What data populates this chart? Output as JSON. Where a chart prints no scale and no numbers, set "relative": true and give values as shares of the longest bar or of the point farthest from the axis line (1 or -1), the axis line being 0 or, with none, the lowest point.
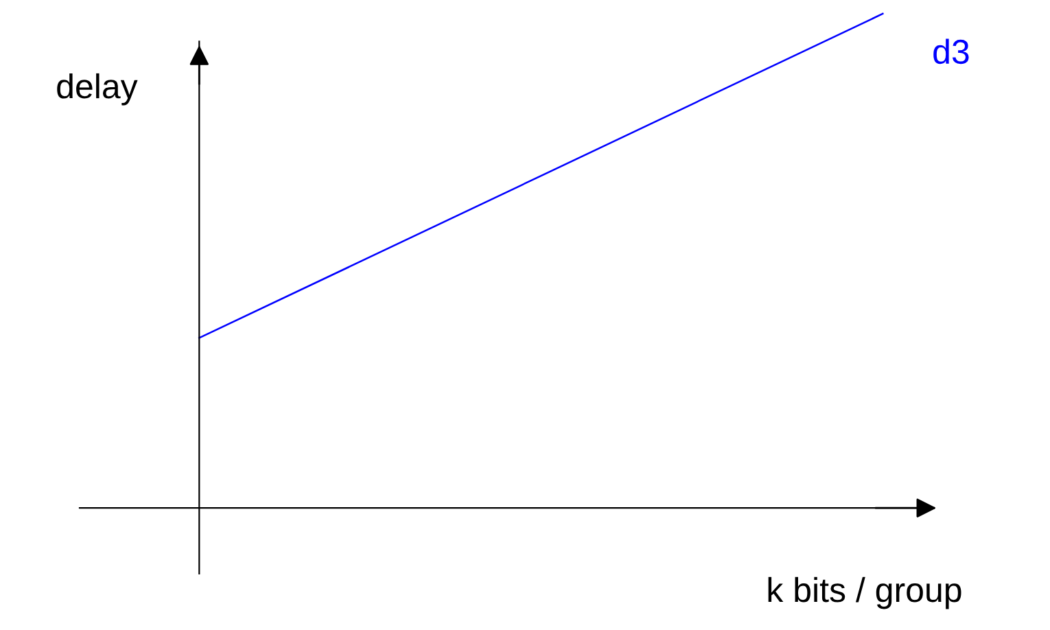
{
  "chart_data": {
    "type": "line",
    "relative": true,
    "xlabel": "k bits / group",
    "ylabel": "delay",
    "categories": [
      null,
      null
    ],
    "series": [
      {
        "name": "d3",
        "color": "#0000ff",
        "values": [
          0.344,
          1.0
        ]
      }
    ],
    "legend": false,
    "marker": "none",
    "line_style": "solid"
  }
}
